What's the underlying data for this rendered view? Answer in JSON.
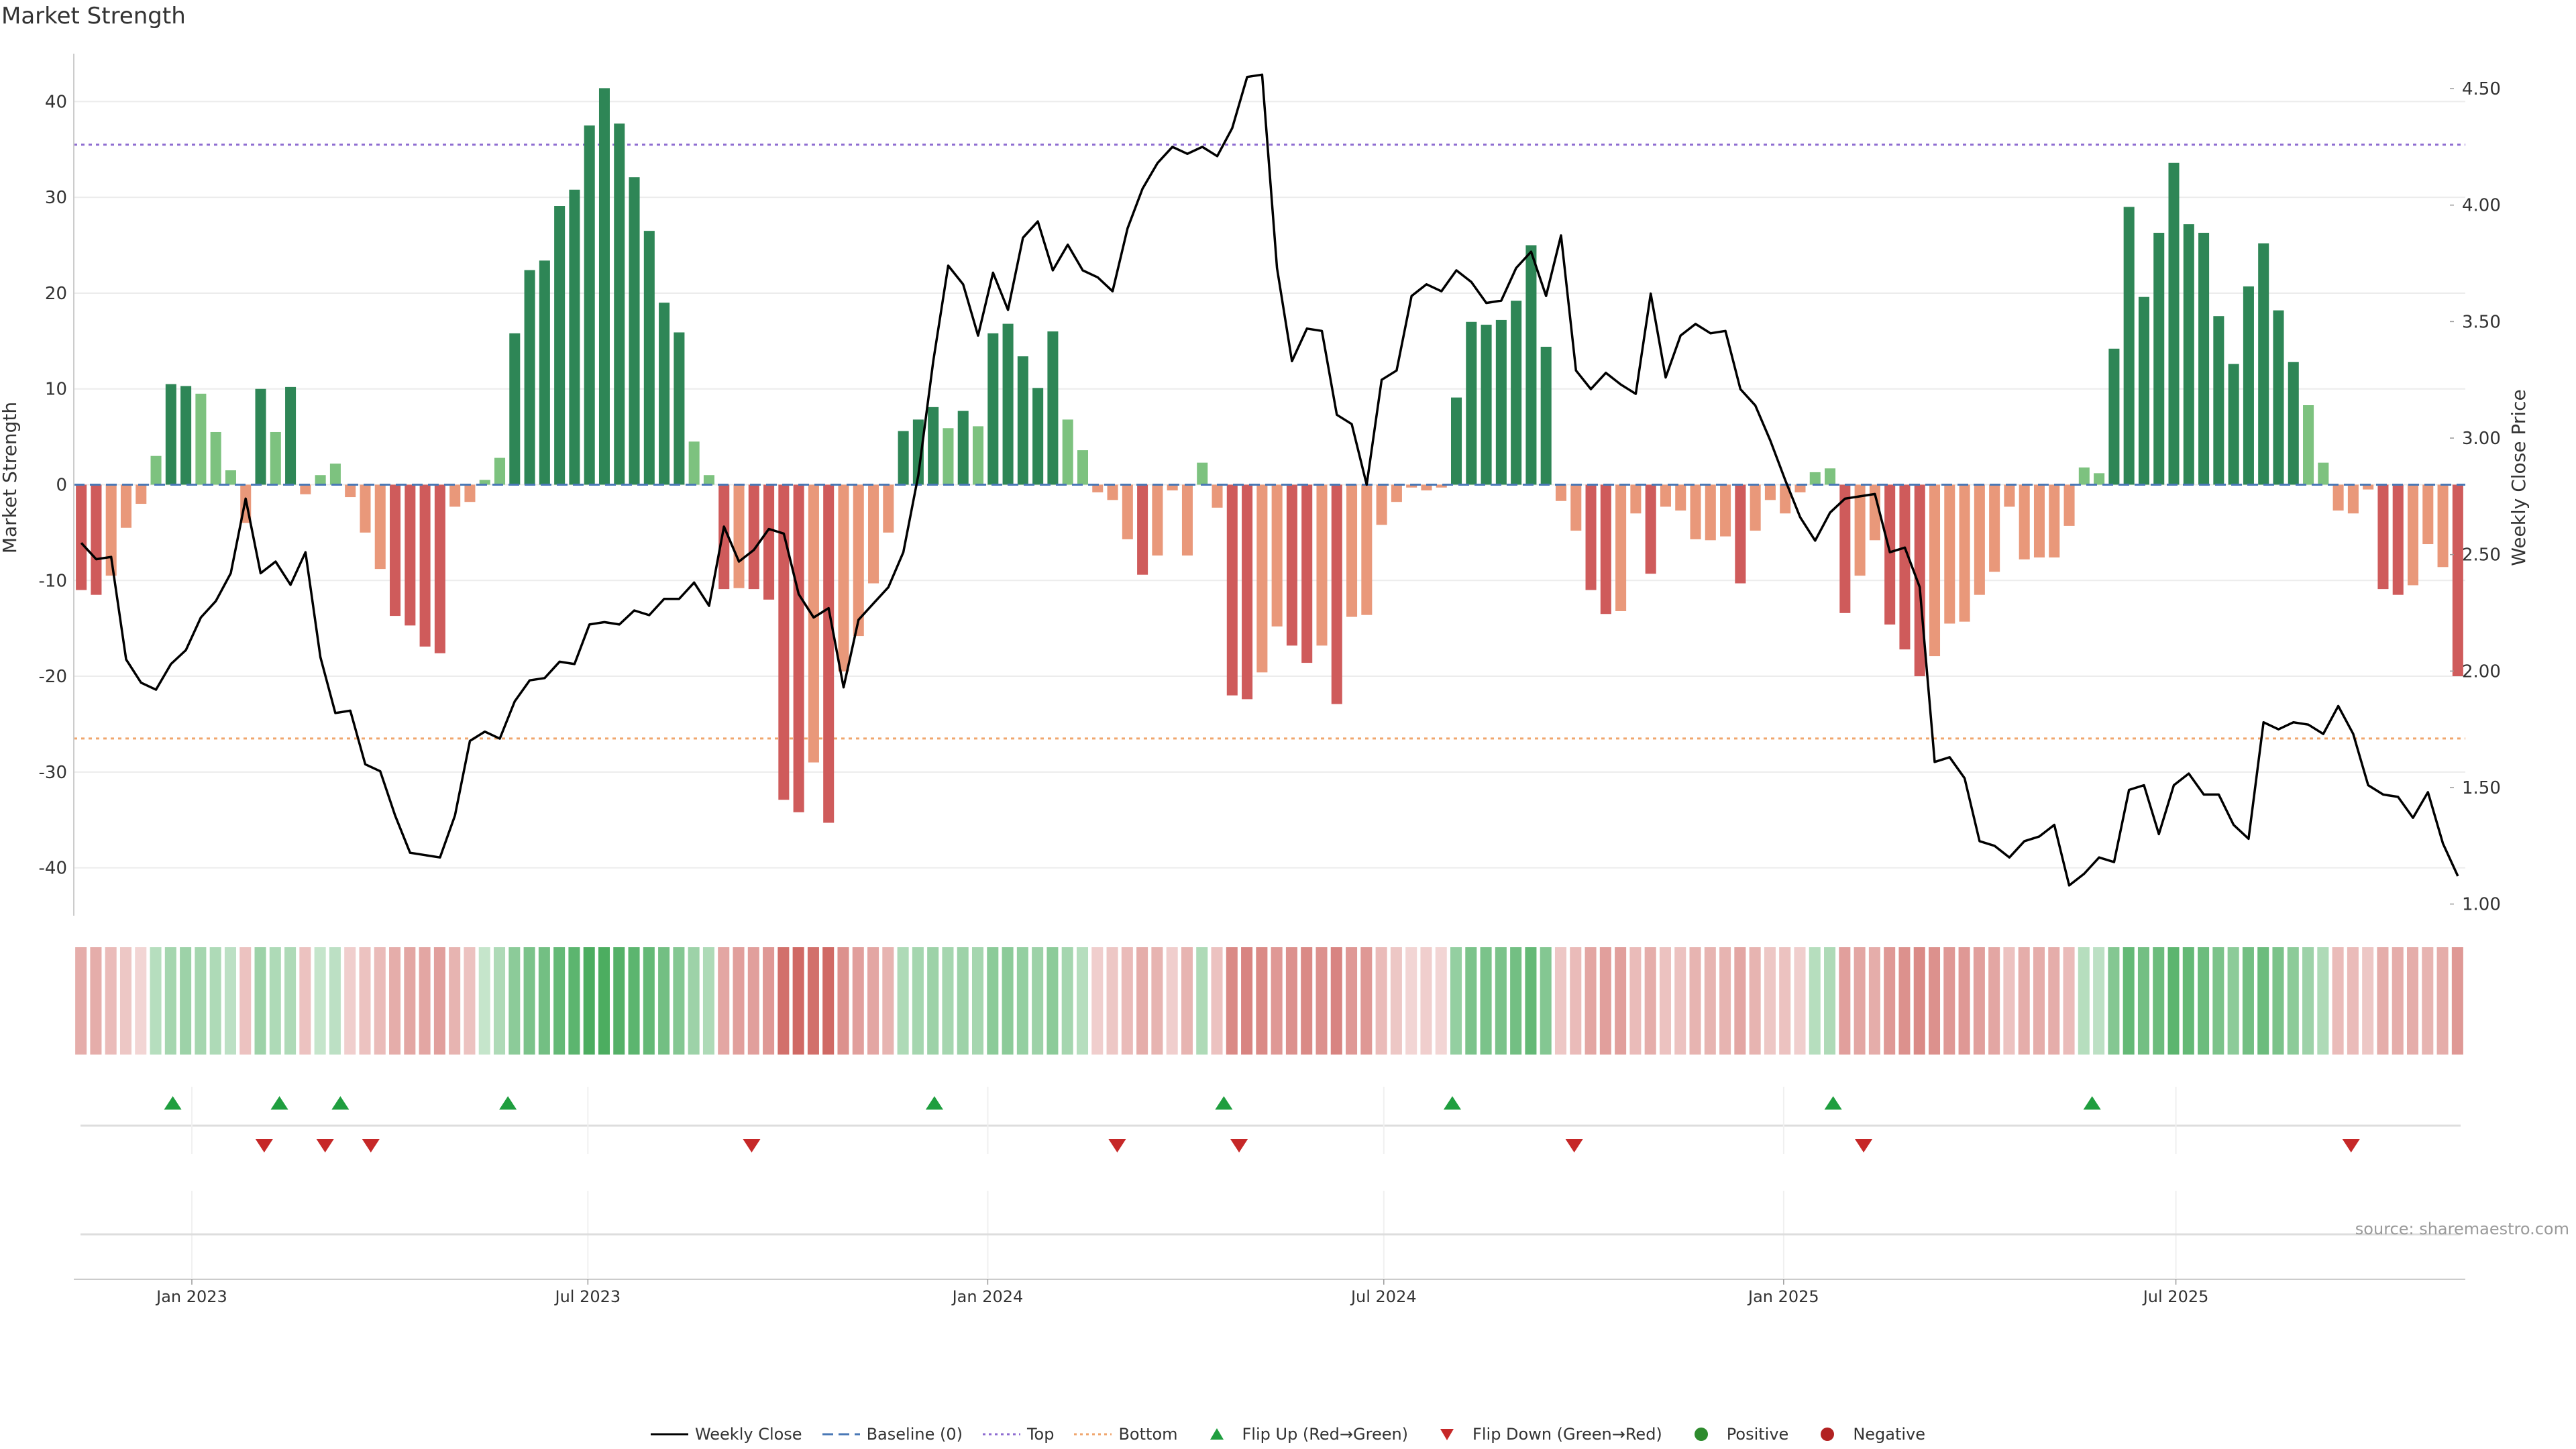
{
  "page_title": "Market Strength",
  "source_note": "source: sharemaestro.com",
  "legend": [
    {
      "key": "weekly_close",
      "label": "Weekly Close",
      "color": "#000000"
    },
    {
      "key": "baseline",
      "label": "Baseline (0)",
      "color": "#4a78b6"
    },
    {
      "key": "top",
      "label": "Top",
      "color": "#8e6cd1"
    },
    {
      "key": "bottom",
      "label": "Bottom",
      "color": "#f0a66e"
    },
    {
      "key": "flip_up",
      "label": "Flip Up (Red→Green)",
      "color": "#1f9e3f"
    },
    {
      "key": "flip_down",
      "label": "Flip Down (Green→Red)",
      "color": "#c62828"
    },
    {
      "key": "positive",
      "label": "Positive",
      "color": "#2e8b2e"
    },
    {
      "key": "negative",
      "label": "Negative",
      "color": "#b22222"
    }
  ],
  "chart_data": {
    "type": "bar",
    "title": "Market Strength",
    "ylabel": "Market Strength",
    "y2label": "Weekly Close Price",
    "ylim": [
      -45,
      45
    ],
    "y2lim": [
      0.95,
      4.65
    ],
    "yticks": [
      -40,
      -30,
      -20,
      -10,
      0,
      10,
      20,
      30,
      40
    ],
    "y2ticks": [
      1.0,
      1.5,
      2.0,
      2.5,
      3.0,
      3.5,
      4.0,
      4.5
    ],
    "y2tick_labels": [
      "1.00",
      "1.50",
      "2.00",
      "2.50",
      "3.00",
      "3.50",
      "4.00",
      "4.50"
    ],
    "x_range_weeks": [
      0,
      157
    ],
    "xtick_weeks": [
      7.75,
      33.75,
      60.0,
      86.0,
      112.25,
      138.0
    ],
    "xtick_labels": [
      "Jan 2023",
      "Jul 2023",
      "Jan 2024",
      "Jul 2024",
      "Jan 2025",
      "Jul 2025"
    ],
    "top_threshold": 35.5,
    "bottom_threshold": -26.5,
    "baseline": 0,
    "bar_colors": {
      "strong_pos": "#2e8656",
      "weak_pos": "#7dc27f",
      "strong_neg": "#cf5b5b",
      "weak_neg": "#e9987a"
    },
    "market_strength": [
      -11,
      -11.5,
      -9.5,
      -4.5,
      -2,
      3,
      10.5,
      10.3,
      9.5,
      5.5,
      1.5,
      -4,
      10,
      5.5,
      10.2,
      -1,
      1,
      2.2,
      -1.3,
      -5,
      -8.8,
      -13.7,
      -14.7,
      -16.9,
      -17.6,
      -2.3,
      -1.8,
      0.5,
      2.8,
      15.8,
      22.4,
      23.4,
      29.1,
      30.8,
      37.5,
      41.4,
      37.7,
      32.1,
      26.5,
      19,
      15.9,
      4.5,
      1,
      -10.9,
      -10.8,
      -10.9,
      -12,
      -32.9,
      -34.2,
      -29,
      -35.3,
      -19.5,
      -15.8,
      -10.3,
      -5,
      5.6,
      6.8,
      8.1,
      5.9,
      7.7,
      6.1,
      15.8,
      16.8,
      13.4,
      10.1,
      16,
      6.8,
      3.6,
      -0.8,
      -1.6,
      -5.7,
      -9.4,
      -7.4,
      -0.6,
      -7.4,
      2.3,
      -2.4,
      -22,
      -22.4,
      -19.6,
      -14.8,
      -16.8,
      -18.6,
      -16.8,
      -22.9,
      -13.8,
      -13.6,
      -4.2,
      -1.8,
      -0.3,
      -0.6,
      -0.3,
      9.1,
      17,
      16.7,
      17.2,
      19.2,
      25,
      14.4,
      -1.7,
      -4.8,
      -11,
      -13.5,
      -13.2,
      -3,
      -9.3,
      -2.3,
      -2.7,
      -5.7,
      -5.8,
      -5.4,
      -10.3,
      -4.8,
      -1.6,
      -3,
      -0.8,
      1.3,
      1.7,
      -13.4,
      -9.5,
      -5.8,
      -14.6,
      -17.2,
      -20,
      -17.9,
      -14.5,
      -14.3,
      -11.5,
      -9.1,
      -2.3,
      -7.8,
      -7.6,
      -7.6,
      -4.3,
      1.8,
      1.2,
      14.2,
      29,
      19.6,
      26.3,
      33.6,
      27.2,
      26.3,
      17.6,
      12.6,
      20.7,
      25.2,
      18.2,
      12.8,
      8.3,
      2.3,
      -2.7,
      -3,
      -0.5,
      -10.9,
      -11.5,
      -10.5,
      -6.2,
      -8.6,
      -20
    ],
    "weekly_close": [
      2.55,
      2.48,
      2.49,
      2.05,
      1.95,
      1.92,
      2.03,
      2.09,
      2.23,
      2.3,
      2.42,
      2.74,
      2.42,
      2.47,
      2.37,
      2.51,
      2.06,
      1.82,
      1.83,
      1.6,
      1.57,
      1.38,
      1.22,
      1.21,
      1.2,
      1.38,
      1.7,
      1.74,
      1.71,
      1.87,
      1.96,
      1.97,
      2.04,
      2.03,
      2.2,
      2.21,
      2.2,
      2.26,
      2.24,
      2.31,
      2.31,
      2.38,
      2.28,
      2.62,
      2.47,
      2.52,
      2.61,
      2.59,
      2.33,
      2.23,
      2.27,
      1.93,
      2.22,
      2.29,
      2.36,
      2.51,
      2.84,
      3.33,
      3.74,
      3.66,
      3.44,
      3.71,
      3.55,
      3.86,
      3.93,
      3.72,
      3.83,
      3.72,
      3.69,
      3.63,
      3.9,
      4.07,
      4.18,
      4.25,
      4.22,
      4.25,
      4.21,
      4.33,
      4.55,
      4.56,
      3.73,
      3.33,
      3.47,
      3.46,
      3.1,
      3.06,
      2.8,
      3.25,
      3.29,
      3.61,
      3.66,
      3.63,
      3.72,
      3.67,
      3.58,
      3.59,
      3.73,
      3.8,
      3.61,
      3.87,
      3.29,
      3.21,
      3.28,
      3.23,
      3.19,
      3.62,
      3.26,
      3.44,
      3.49,
      3.45,
      3.46,
      3.21,
      3.14,
      2.99,
      2.82,
      2.66,
      2.56,
      2.68,
      2.74,
      2.75,
      2.76,
      2.51,
      2.53,
      2.36,
      1.61,
      1.63,
      1.54,
      1.27,
      1.25,
      1.2,
      1.27,
      1.29,
      1.34,
      1.08,
      1.13,
      1.2,
      1.18,
      1.49,
      1.51,
      1.3,
      1.51,
      1.56,
      1.47,
      1.47,
      1.34,
      1.28,
      1.78,
      1.75,
      1.78,
      1.77,
      1.73,
      1.85,
      1.73,
      1.51,
      1.47,
      1.46,
      1.37,
      1.48,
      1.26,
      1.12
    ],
    "regime_shades": [
      0.45,
      0.45,
      0.35,
      0.25,
      0.15,
      0.3,
      0.4,
      0.45,
      0.4,
      0.35,
      0.25,
      0.3,
      0.45,
      0.35,
      0.35,
      0.3,
      0.2,
      0.25,
      0.2,
      0.3,
      0.35,
      0.45,
      0.5,
      0.5,
      0.55,
      0.4,
      0.3,
      0.2,
      0.35,
      0.55,
      0.65,
      0.7,
      0.8,
      0.85,
      0.95,
      0.95,
      0.9,
      0.85,
      0.8,
      0.7,
      0.6,
      0.45,
      0.35,
      0.5,
      0.55,
      0.55,
      0.6,
      0.9,
      0.95,
      0.9,
      0.95,
      0.65,
      0.55,
      0.5,
      0.4,
      0.35,
      0.4,
      0.45,
      0.4,
      0.45,
      0.4,
      0.55,
      0.55,
      0.5,
      0.45,
      0.55,
      0.4,
      0.3,
      0.2,
      0.25,
      0.35,
      0.45,
      0.4,
      0.2,
      0.4,
      0.35,
      0.3,
      0.7,
      0.75,
      0.7,
      0.6,
      0.65,
      0.7,
      0.65,
      0.75,
      0.6,
      0.6,
      0.35,
      0.25,
      0.15,
      0.2,
      0.15,
      0.5,
      0.65,
      0.65,
      0.65,
      0.7,
      0.8,
      0.6,
      0.25,
      0.35,
      0.5,
      0.55,
      0.55,
      0.35,
      0.45,
      0.3,
      0.3,
      0.4,
      0.4,
      0.4,
      0.5,
      0.4,
      0.25,
      0.3,
      0.2,
      0.3,
      0.35,
      0.55,
      0.5,
      0.45,
      0.6,
      0.65,
      0.7,
      0.65,
      0.6,
      0.6,
      0.55,
      0.5,
      0.3,
      0.45,
      0.45,
      0.45,
      0.35,
      0.3,
      0.25,
      0.6,
      0.8,
      0.7,
      0.75,
      0.85,
      0.8,
      0.75,
      0.65,
      0.55,
      0.7,
      0.75,
      0.65,
      0.55,
      0.45,
      0.35,
      0.35,
      0.35,
      0.25,
      0.45,
      0.45,
      0.45,
      0.4,
      0.45,
      0.6
    ],
    "flip_up_weeks": [
      6.5,
      13.5,
      17.5,
      28.5,
      56.5,
      75.5,
      90.5,
      115.5,
      132.5
    ],
    "flip_down_weeks": [
      12.5,
      16.5,
      19.5,
      44.5,
      68.5,
      76.5,
      98.5,
      117.5,
      149.5
    ]
  }
}
